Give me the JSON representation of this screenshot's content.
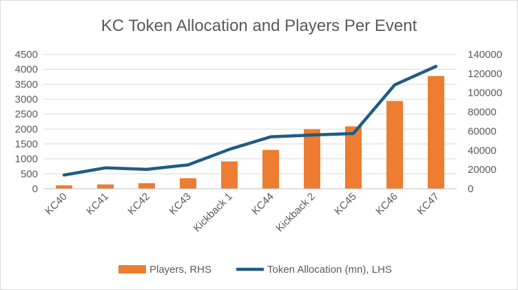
{
  "chart_data": {
    "type": "bar",
    "title": "KC Token Allocation and Players Per Event",
    "categories": [
      "KC40",
      "KC41",
      "KC42",
      "KC43",
      "Kickback 1",
      "KC44",
      "Kickback 2",
      "KC45",
      "KC46",
      "KC47"
    ],
    "left_axis": {
      "ticks": [
        "0",
        "500",
        "1000",
        "1500",
        "2000",
        "2500",
        "3000",
        "3500",
        "4000",
        "4500"
      ],
      "ylim": [
        0,
        4500
      ]
    },
    "right_axis": {
      "ticks": [
        "0",
        "20000",
        "40000",
        "60000",
        "80000",
        "100000",
        "120000",
        "140000"
      ],
      "ylim": [
        0,
        140000
      ]
    },
    "series": [
      {
        "name": "Players, RHS",
        "kind": "bar",
        "axis": "right",
        "color": "#ed7d31",
        "values": [
          3500,
          4500,
          5800,
          11000,
          28500,
          40500,
          62000,
          65000,
          91500,
          117500
        ]
      },
      {
        "name": "Token Allocation (mn), LHS",
        "kind": "line",
        "axis": "left",
        "color": "#1f5c85",
        "values": [
          460,
          700,
          650,
          800,
          1320,
          1740,
          1800,
          1850,
          3480,
          4100
        ]
      }
    ],
    "gridlines": true,
    "legend_position": "bottom"
  }
}
